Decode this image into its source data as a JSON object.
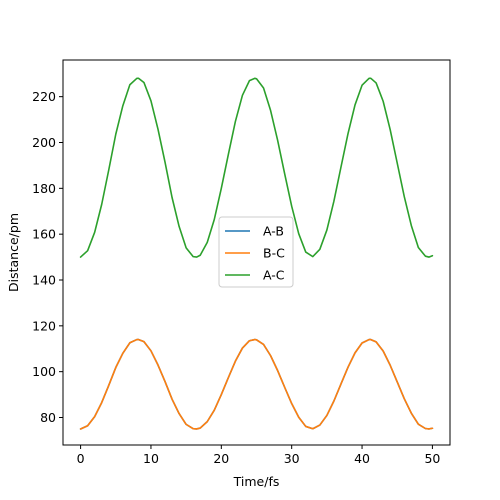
{
  "chart_data": {
    "type": "line",
    "xlabel": "Time/fs",
    "ylabel": "Distance/pm",
    "xlim": [
      -2.5,
      52.5
    ],
    "ylim": [
      68,
      236
    ],
    "xticks": [
      0,
      10,
      20,
      30,
      40,
      50
    ],
    "yticks": [
      80,
      100,
      120,
      140,
      160,
      180,
      200,
      220
    ],
    "grid": false,
    "legend": {
      "position": "center"
    },
    "series": [
      {
        "name": "A-B",
        "color": "#1f77b4",
        "min": 75,
        "max": 114,
        "period_fs": 16.5
      },
      {
        "name": "B-C",
        "color": "#ff7f0e",
        "min": 75,
        "max": 114,
        "period_fs": 16.5
      },
      {
        "name": "A-C",
        "color": "#2ca02c",
        "min": 150,
        "max": 228,
        "period_fs": 16.5
      }
    ],
    "x": [
      0,
      1,
      2,
      3,
      4,
      5,
      6,
      7,
      8,
      8.25,
      9,
      10,
      11,
      12,
      13,
      14,
      15,
      16,
      16.5,
      17,
      18,
      19,
      20,
      21,
      22,
      23,
      24,
      24.75,
      25,
      26,
      27,
      28,
      29,
      30,
      31,
      32,
      33,
      34,
      35,
      36,
      37,
      38,
      39,
      40,
      41,
      41.25,
      42,
      43,
      44,
      45,
      46,
      47,
      48,
      49,
      49.5,
      50
    ],
    "values": {
      "A-B": [
        75.0,
        76.4,
        80.4,
        86.5,
        94.0,
        101.8,
        108.0,
        112.6,
        114.0,
        114.0,
        113.1,
        109.1,
        102.9,
        95.7,
        88.0,
        81.7,
        77.0,
        75.1,
        75.0,
        75.4,
        78.2,
        83.2,
        90.0,
        97.4,
        104.6,
        110.3,
        113.5,
        114.0,
        113.9,
        111.9,
        107.0,
        100.5,
        93.2,
        86.1,
        80.1,
        76.1,
        75.1,
        76.7,
        80.9,
        87.2,
        94.6,
        101.9,
        108.2,
        112.5,
        114.0,
        114.0,
        113.0,
        109.0,
        102.8,
        95.5,
        88.2,
        81.9,
        77.1,
        75.2,
        75.0,
        75.3
      ],
      "B-C": [
        75.0,
        76.4,
        80.4,
        86.5,
        94.0,
        101.8,
        108.0,
        112.6,
        114.0,
        114.0,
        113.1,
        109.1,
        102.9,
        95.7,
        88.0,
        81.7,
        77.0,
        75.1,
        75.0,
        75.4,
        78.2,
        83.2,
        90.0,
        97.4,
        104.6,
        110.3,
        113.5,
        114.0,
        113.9,
        111.9,
        107.0,
        100.5,
        93.2,
        86.1,
        80.1,
        76.1,
        75.1,
        76.7,
        80.9,
        87.2,
        94.6,
        101.9,
        108.2,
        112.5,
        114.0,
        114.0,
        113.0,
        109.0,
        102.8,
        95.5,
        88.2,
        81.9,
        77.1,
        75.2,
        75.0,
        75.3
      ],
      "A-C": [
        150.0,
        152.8,
        160.8,
        173.0,
        188.0,
        203.6,
        216.0,
        225.2,
        228.0,
        228.0,
        226.2,
        218.2,
        205.8,
        191.4,
        176.0,
        163.4,
        154.0,
        150.2,
        150.0,
        150.8,
        156.4,
        166.4,
        180.0,
        194.8,
        209.2,
        220.6,
        227.0,
        228.0,
        227.8,
        223.8,
        214.0,
        201.0,
        186.4,
        172.2,
        160.2,
        152.2,
        150.2,
        153.4,
        161.8,
        174.4,
        189.2,
        203.8,
        216.4,
        225.0,
        228.0,
        228.0,
        226.0,
        218.0,
        205.6,
        191.0,
        176.4,
        163.8,
        154.2,
        150.4,
        150.0,
        150.6
      ]
    }
  }
}
